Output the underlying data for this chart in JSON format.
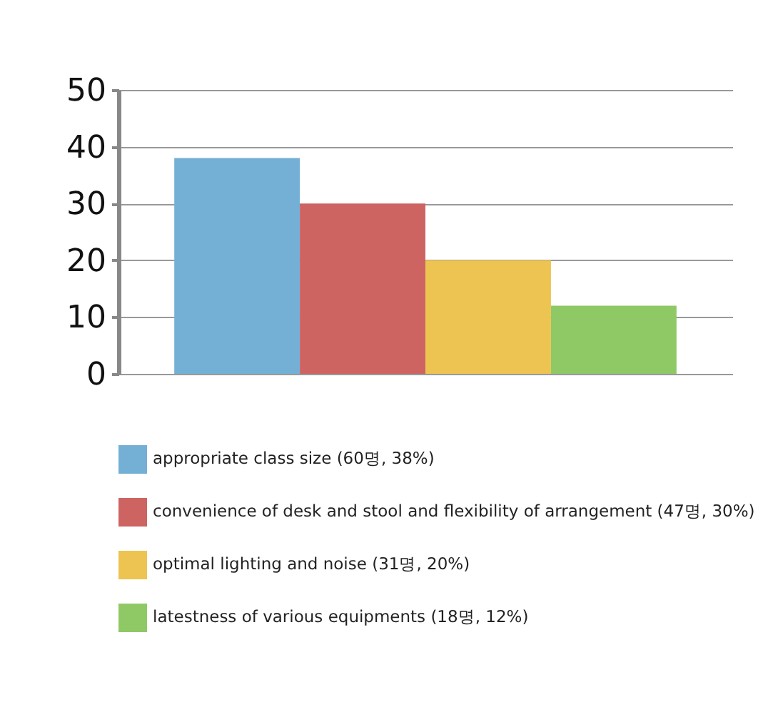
{
  "chart_data": {
    "type": "bar",
    "categories": [
      null
    ],
    "series": [
      {
        "name": "appropriate class size (60명, 38%)",
        "color": "#74b0d6",
        "values": [
          38
        ]
      },
      {
        "name": "convenience of desk and stool and flexibility of arrangement (47명, 30%)",
        "color": "#cd6462",
        "values": [
          30
        ]
      },
      {
        "name": "optimal lighting and noise (31명, 20%)",
        "color": "#edc451",
        "values": [
          20
        ]
      },
      {
        "name": "latestness of various equipments (18명, 12%)",
        "color": "#8fc965",
        "values": [
          12
        ]
      }
    ],
    "ylim": [
      0,
      50
    ],
    "yticks": [
      0,
      10,
      20,
      30,
      40,
      50
    ],
    "grid": "y",
    "legend": "bottom",
    "tick_labels": "y"
  }
}
